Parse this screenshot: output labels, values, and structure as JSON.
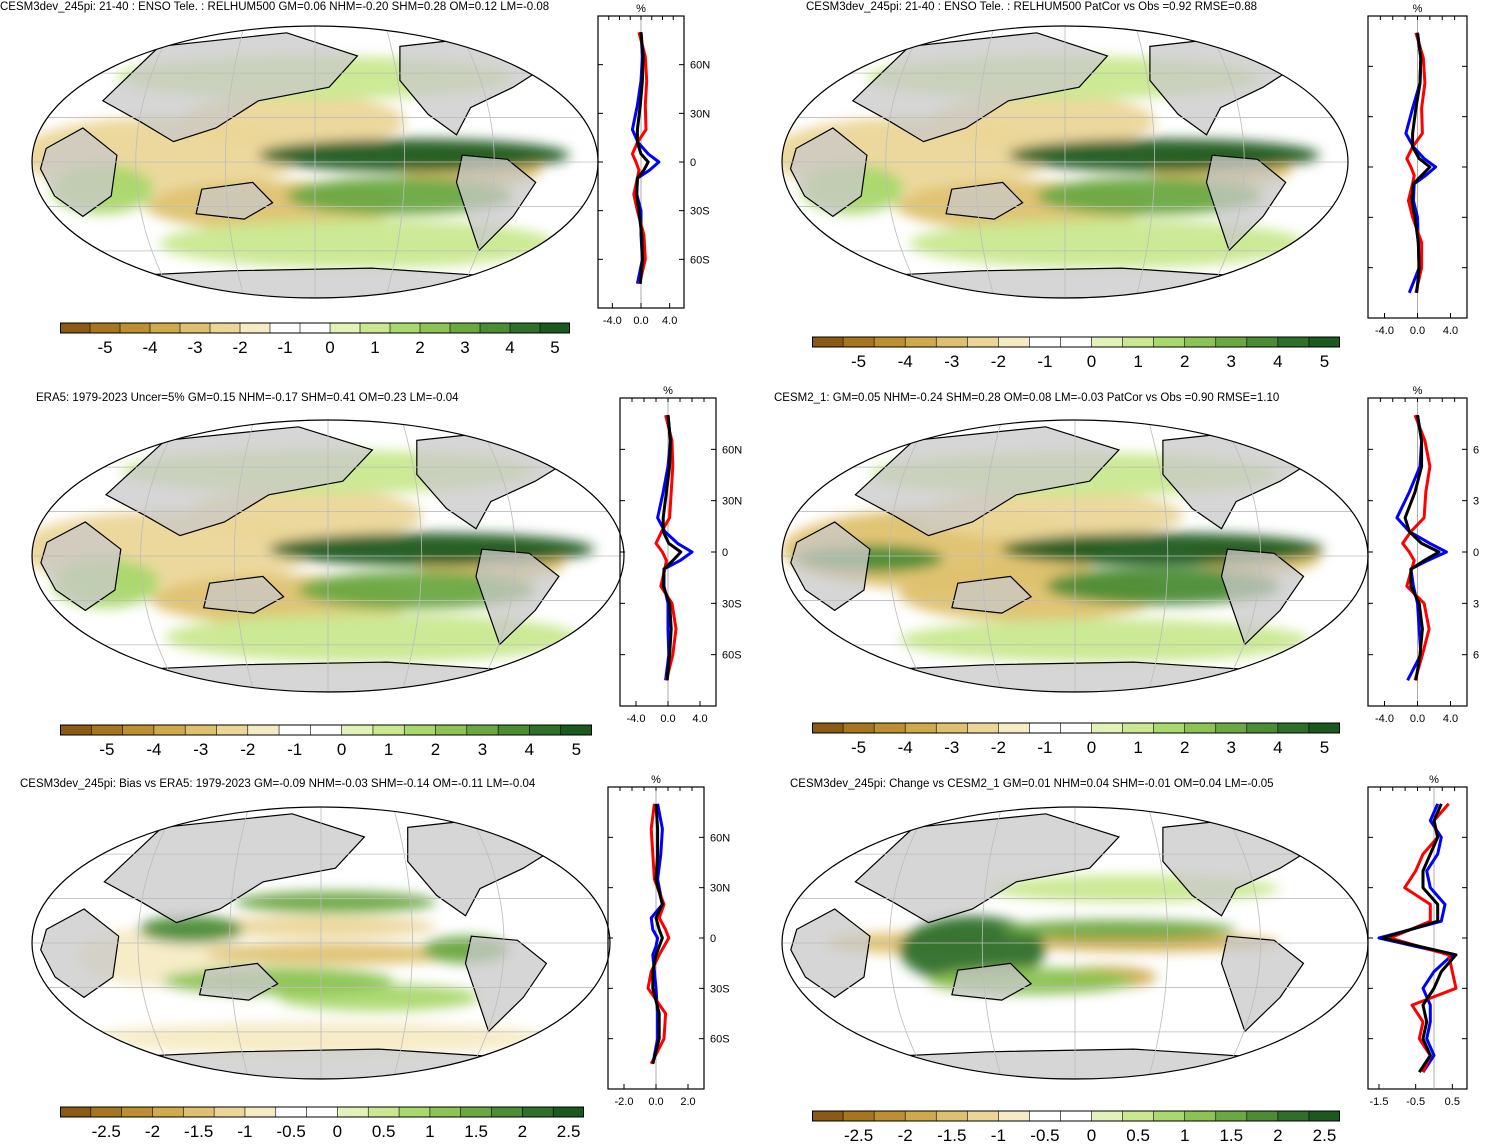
{
  "colors": {
    "scale": [
      "#8c5a14",
      "#a8751f",
      "#bd8f30",
      "#cfaa4a",
      "#dec16e",
      "#ebd698",
      "#f5ebc4",
      "#ffffff",
      "#ffffff",
      "#e2f2b8",
      "#c9e88f",
      "#a9d86c",
      "#8cc353",
      "#6aa842",
      "#4b8c35",
      "#2f6f2a",
      "#1b5a1e"
    ],
    "land": "#c8c8c8",
    "curve_model": "#ff0000",
    "curve_obs": "#0000ff",
    "curve_mean": "#000000"
  },
  "panels": [
    {
      "id": "p1",
      "title": "CESM3dev_245pi: 21-40 : ENSO Tele. : RELHUM500 GM=0.06 NHM=-0.20 SHM=0.28 OM=0.12 LM=-0.08",
      "units": "%",
      "lat_ticks": [
        "60N",
        "30N",
        "0",
        "30S",
        "60S"
      ],
      "x_ticks": [
        "-4.0",
        "0.0",
        "4.0"
      ],
      "colorbar_ticks": [
        "-5",
        "-4",
        "-3",
        "-2",
        "-1",
        "0",
        "1",
        "2",
        "3",
        "4",
        "5"
      ]
    },
    {
      "id": "p2",
      "title": "CESM3dev_245pi: 21-40 : ENSO Tele. : RELHUM500 PatCor vs Obs =0.92 RMSE=0.88",
      "units": "%",
      "lat_ticks": [],
      "x_ticks": [
        "-4.0",
        "0.0",
        "4.0"
      ],
      "colorbar_ticks": [
        "-5",
        "-4",
        "-3",
        "-2",
        "-1",
        "0",
        "1",
        "2",
        "3",
        "4",
        "5"
      ]
    },
    {
      "id": "p3",
      "title": "ERA5: 1979-2023 Uncer=5% GM=0.15 NHM=-0.17 SHM=0.41 OM=0.23 LM=-0.04",
      "units": "%",
      "lat_ticks": [
        "60N",
        "30N",
        "0",
        "30S",
        "60S"
      ],
      "x_ticks": [
        "-4.0",
        "0.0",
        "4.0"
      ],
      "colorbar_ticks": [
        "-5",
        "-4",
        "-3",
        "-2",
        "-1",
        "0",
        "1",
        "2",
        "3",
        "4",
        "5"
      ]
    },
    {
      "id": "p4",
      "title": "CESM2_1: GM=0.05 NHM=-0.24 SHM=0.28 OM=0.08 LM=-0.03 PatCor vs Obs =0.90 RMSE=1.10",
      "units": "%",
      "lat_ticks": [
        "6",
        "3",
        "0",
        "3",
        "6"
      ],
      "x_ticks": [
        "-4.0",
        "0.0",
        "4.0"
      ],
      "colorbar_ticks": [
        "-5",
        "-4",
        "-3",
        "-2",
        "-1",
        "0",
        "1",
        "2",
        "3",
        "4",
        "5"
      ]
    },
    {
      "id": "p5",
      "title": "CESM3dev_245pi: Bias vs ERA5: 1979-2023 GM=-0.09 NHM=-0.03 SHM=-0.14 OM=-0.11 LM=-0.04",
      "units": "%",
      "lat_ticks": [
        "60N",
        "30N",
        "0",
        "30S",
        "60S"
      ],
      "x_ticks": [
        "-2.0",
        "0.0",
        "2.0"
      ],
      "colorbar_ticks": [
        "-2.5",
        "-2",
        "-1.5",
        "-1",
        "-0.5",
        "0",
        "0.5",
        "1",
        "1.5",
        "2",
        "2.5"
      ]
    },
    {
      "id": "p6",
      "title": "CESM3dev_245pi: Change vs CESM2_1 GM=0.01 NHM=0.04 SHM=-0.01 OM=0.04 LM=-0.05",
      "units": "%",
      "lat_ticks": [],
      "x_ticks": [
        "-1.5",
        "-0.5",
        "0.5"
      ],
      "colorbar_ticks": [
        "-2.5",
        "-2",
        "-1.5",
        "-1",
        "-0.5",
        "0",
        "0.5",
        "1",
        "1.5",
        "2",
        "2.5"
      ]
    }
  ],
  "chart_data": [
    {
      "type": "heatmap",
      "panel": "p1",
      "title": "CESM3dev_245pi: 21-40 : ENSO Tele. : RELHUM500 GM=0.06 NHM=-0.20 SHM=0.28 OM=0.12 LM=-0.08",
      "colorbar_range": [
        -5,
        5
      ]
    },
    {
      "type": "line",
      "panel": "p1",
      "y_ticks": [
        "60N",
        "30N",
        "0",
        "30S",
        "60S"
      ],
      "x_ticks": [
        "-4.0",
        "0.0",
        "4.0"
      ],
      "xlim": [
        -6,
        6
      ],
      "series": [
        {
          "color": "#0000ff",
          "lat": [
            80,
            65,
            50,
            35,
            20,
            12,
            5,
            0,
            -5,
            -10,
            -20,
            -30,
            -45,
            -60,
            -75
          ],
          "values": [
            0.0,
            0.2,
            0.0,
            -0.5,
            -1.2,
            -0.4,
            1.0,
            2.5,
            1.2,
            -0.5,
            -0.6,
            0.0,
            0.0,
            0.2,
            -0.5
          ]
        },
        {
          "color": "#ff0000",
          "lat": [
            80,
            65,
            50,
            35,
            20,
            12,
            5,
            0,
            -5,
            -10,
            -20,
            -30,
            -45,
            -60,
            -75
          ],
          "values": [
            -0.3,
            0.6,
            0.8,
            0.6,
            0.7,
            -0.5,
            -1.2,
            -0.7,
            -0.3,
            -0.5,
            -1.0,
            -0.5,
            0.4,
            0.6,
            -0.2
          ]
        },
        {
          "color": "#000000",
          "lat": [
            80,
            65,
            50,
            35,
            20,
            12,
            5,
            0,
            -5,
            -10,
            -20,
            -30,
            -45,
            -60,
            -75
          ],
          "values": [
            0.0,
            0.3,
            0.2,
            -0.1,
            -0.5,
            -0.5,
            0.0,
            1.0,
            0.4,
            -0.5,
            -0.6,
            -0.3,
            0.1,
            0.2,
            -0.1
          ]
        }
      ]
    },
    {
      "type": "heatmap",
      "panel": "p2",
      "title": "CESM3dev_245pi: 21-40 : ENSO Tele. : RELHUM500 PatCor vs Obs =0.92 RMSE=0.88",
      "colorbar_range": [
        -5,
        5
      ]
    },
    {
      "type": "line",
      "panel": "p2",
      "x_ticks": [
        "-4.0",
        "0.0",
        "4.0"
      ],
      "xlim": [
        -6,
        6
      ],
      "series": [
        {
          "color": "#0000ff",
          "lat": [
            80,
            65,
            50,
            35,
            20,
            12,
            5,
            0,
            -5,
            -10,
            -20,
            -30,
            -45,
            -60,
            -75
          ],
          "values": [
            0.0,
            0.4,
            0.3,
            -0.6,
            -1.4,
            -0.5,
            0.8,
            2.2,
            1.0,
            -0.4,
            -0.5,
            0.0,
            0.1,
            0.2,
            -1.0
          ]
        },
        {
          "color": "#ff0000",
          "lat": [
            80,
            65,
            50,
            35,
            20,
            12,
            5,
            0,
            -5,
            -10,
            -20,
            -30,
            -45,
            -60,
            -75
          ],
          "values": [
            -0.2,
            0.7,
            0.9,
            0.5,
            0.6,
            -0.6,
            -1.3,
            -0.8,
            -0.4,
            -0.6,
            -1.1,
            -0.6,
            0.5,
            0.5,
            -0.2
          ]
        },
        {
          "color": "#000000",
          "lat": [
            80,
            65,
            50,
            35,
            20,
            12,
            5,
            0,
            -5,
            -10,
            -20,
            -30,
            -45,
            -60,
            -75
          ],
          "values": [
            0.0,
            0.4,
            0.3,
            -0.2,
            -0.6,
            -0.6,
            0.2,
            1.5,
            0.5,
            -0.5,
            -0.7,
            -0.3,
            0.1,
            0.2,
            -0.1
          ]
        }
      ]
    },
    {
      "type": "heatmap",
      "panel": "p3",
      "title": "ERA5: 1979-2023 Uncer=5% GM=0.15 NHM=-0.17 SHM=0.41 OM=0.23 LM=-0.04",
      "colorbar_range": [
        -5,
        5
      ]
    },
    {
      "type": "line",
      "panel": "p3",
      "y_ticks": [
        "60N",
        "30N",
        "0",
        "30S",
        "60S"
      ],
      "x_ticks": [
        "-4.0",
        "0.0",
        "4.0"
      ],
      "xlim": [
        -6,
        6
      ],
      "series": [
        {
          "color": "#0000ff",
          "lat": [
            80,
            65,
            50,
            35,
            20,
            12,
            5,
            0,
            -5,
            -10,
            -20,
            -30,
            -45,
            -60,
            -75
          ],
          "values": [
            0.0,
            0.3,
            0.0,
            -0.6,
            -1.3,
            -0.4,
            1.2,
            3.0,
            1.5,
            -0.5,
            -0.5,
            0.0,
            0.0,
            0.1,
            -0.3
          ]
        },
        {
          "color": "#ff0000",
          "lat": [
            80,
            65,
            50,
            35,
            20,
            12,
            5,
            0,
            -5,
            -10,
            -20,
            -30,
            -45,
            -60,
            -75
          ],
          "values": [
            -0.3,
            0.5,
            0.6,
            0.4,
            0.2,
            -0.8,
            -1.5,
            -0.7,
            -0.2,
            -0.4,
            -0.9,
            0.5,
            1.0,
            0.6,
            -0.2
          ]
        },
        {
          "color": "#000000",
          "lat": [
            80,
            65,
            50,
            35,
            20,
            12,
            5,
            0,
            -5,
            -10,
            -20,
            -30,
            -45,
            -60,
            -75
          ],
          "values": [
            0.0,
            0.3,
            0.2,
            -0.2,
            -0.6,
            -0.6,
            0.1,
            1.6,
            0.6,
            -0.5,
            -0.6,
            0.2,
            0.4,
            0.2,
            -0.1
          ]
        }
      ]
    },
    {
      "type": "heatmap",
      "panel": "p4",
      "title": "CESM2_1: GM=0.05 NHM=-0.24 SHM=0.28 OM=0.08 LM=-0.03 PatCor vs Obs =0.90 RMSE=1.10",
      "colorbar_range": [
        -5,
        5
      ]
    },
    {
      "type": "line",
      "panel": "p4",
      "y_ticks": [
        "6",
        "3",
        "0",
        "3",
        "6"
      ],
      "x_ticks": [
        "-4.0",
        "0.0",
        "4.0"
      ],
      "xlim": [
        -6,
        6
      ],
      "series": [
        {
          "color": "#0000ff",
          "lat": [
            80,
            65,
            50,
            35,
            20,
            12,
            5,
            0,
            -5,
            -10,
            -20,
            -30,
            -45,
            -60,
            -75
          ],
          "values": [
            0.0,
            0.5,
            0.3,
            -1.0,
            -2.5,
            -1.0,
            1.5,
            3.5,
            1.2,
            -0.8,
            -0.5,
            0.0,
            0.2,
            0.4,
            -1.2
          ]
        },
        {
          "color": "#ff0000",
          "lat": [
            80,
            65,
            50,
            35,
            20,
            12,
            5,
            0,
            -5,
            -10,
            -20,
            -30,
            -45,
            -60,
            -75
          ],
          "values": [
            -0.3,
            0.9,
            1.5,
            1.0,
            0.8,
            -0.8,
            -1.8,
            -1.0,
            -0.4,
            -0.7,
            -1.3,
            0.8,
            1.4,
            0.6,
            -0.3
          ]
        },
        {
          "color": "#000000",
          "lat": [
            80,
            65,
            50,
            35,
            20,
            12,
            5,
            0,
            -5,
            -10,
            -20,
            -30,
            -45,
            -60,
            -75
          ],
          "values": [
            0.0,
            0.5,
            0.5,
            -0.3,
            -1.5,
            -1.0,
            0.5,
            2.6,
            0.8,
            -0.8,
            -0.8,
            0.2,
            0.6,
            0.3,
            -0.2
          ]
        }
      ]
    },
    {
      "type": "heatmap",
      "panel": "p5",
      "title": "CESM3dev_245pi: Bias vs ERA5: 1979-2023 GM=-0.09 NHM=-0.03 SHM=-0.14 OM=-0.11 LM=-0.04",
      "colorbar_range": [
        -2.5,
        2.5
      ]
    },
    {
      "type": "line",
      "panel": "p5",
      "y_ticks": [
        "60N",
        "30N",
        "0",
        "30S",
        "60S"
      ],
      "x_ticks": [
        "-2.0",
        "0.0",
        "2.0"
      ],
      "xlim": [
        -3,
        3
      ],
      "series": [
        {
          "color": "#0000ff",
          "lat": [
            80,
            65,
            50,
            35,
            20,
            12,
            5,
            0,
            -5,
            -10,
            -20,
            -30,
            -45,
            -60,
            -75
          ],
          "values": [
            0.1,
            0.4,
            0.3,
            0.1,
            0.4,
            -0.3,
            -0.2,
            0.1,
            0.0,
            -0.2,
            -0.1,
            0.0,
            0.1,
            0.1,
            -0.2
          ]
        },
        {
          "color": "#ff0000",
          "lat": [
            80,
            65,
            50,
            35,
            20,
            12,
            5,
            0,
            -5,
            -10,
            -20,
            -30,
            -45,
            -60,
            -75
          ],
          "values": [
            -0.1,
            -0.3,
            -0.2,
            -0.1,
            0.5,
            0.2,
            0.6,
            0.8,
            0.5,
            0.2,
            -0.3,
            -0.5,
            0.6,
            0.5,
            -0.3
          ]
        },
        {
          "color": "#000000",
          "lat": [
            80,
            65,
            50,
            35,
            20,
            12,
            5,
            0,
            -5,
            -10,
            -20,
            -30,
            -45,
            -60,
            -75
          ],
          "values": [
            0.0,
            0.1,
            0.1,
            0.0,
            0.4,
            0.0,
            0.2,
            0.4,
            0.2,
            0.0,
            -0.2,
            -0.2,
            0.2,
            0.2,
            -0.2
          ]
        }
      ]
    },
    {
      "type": "heatmap",
      "panel": "p6",
      "title": "CESM3dev_245pi: Change vs CESM2_1 GM=0.01 NHM=0.04 SHM=-0.01 OM=0.04 LM=-0.05",
      "colorbar_range": [
        -2.5,
        2.5
      ]
    },
    {
      "type": "line",
      "panel": "p6",
      "x_ticks": [
        "-1.5",
        "-0.5",
        "0.5"
      ],
      "xlim": [
        -1.8,
        0.9
      ],
      "series": [
        {
          "color": "#0000ff",
          "lat": [
            80,
            70,
            60,
            50,
            40,
            30,
            20,
            10,
            0,
            -10,
            -20,
            -30,
            -40,
            -50,
            -60,
            -70,
            -80
          ],
          "values": [
            0.1,
            -0.1,
            0.2,
            0.1,
            -0.2,
            -0.1,
            0.3,
            0.2,
            -1.5,
            0.5,
            0.0,
            -0.3,
            -0.1,
            -0.1,
            -0.2,
            0.0,
            -0.3
          ]
        },
        {
          "color": "#ff0000",
          "lat": [
            80,
            70,
            60,
            50,
            40,
            30,
            20,
            10,
            0,
            -10,
            -20,
            -30,
            -40,
            -50,
            -60,
            -70,
            -80
          ],
          "values": [
            0.4,
            0.0,
            0.1,
            -0.3,
            -0.5,
            -0.8,
            -0.1,
            -0.1,
            -1.2,
            0.4,
            0.5,
            0.6,
            -0.6,
            -0.3,
            -0.4,
            -0.1,
            -0.3
          ]
        },
        {
          "color": "#000000",
          "lat": [
            80,
            70,
            60,
            50,
            40,
            30,
            20,
            10,
            0,
            -10,
            -20,
            -30,
            -40,
            -50,
            -60,
            -70,
            -80
          ],
          "values": [
            0.2,
            0.0,
            0.1,
            -0.1,
            -0.3,
            -0.3,
            0.1,
            0.1,
            -1.4,
            0.6,
            0.2,
            0.0,
            -0.3,
            -0.2,
            -0.3,
            -0.1,
            -0.4
          ]
        }
      ]
    }
  ]
}
